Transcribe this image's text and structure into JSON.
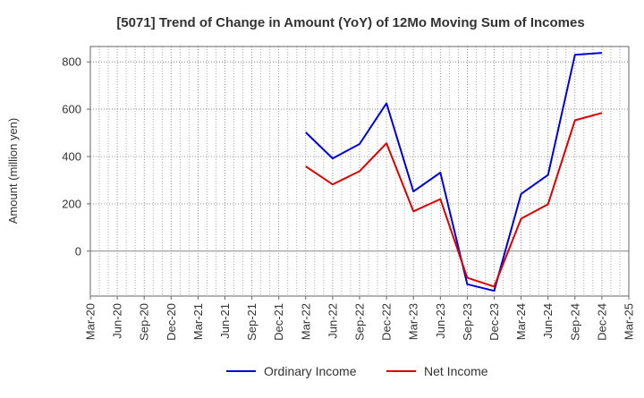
{
  "chart_data": {
    "type": "line",
    "title": "[5071]  Trend of Change in Amount (YoY) of 12Mo Moving Sum of Incomes",
    "xlabel": "",
    "ylabel": "Amount (million yen)",
    "categories": [
      "Mar-20",
      "Jun-20",
      "Sep-20",
      "Dec-20",
      "Mar-21",
      "Jun-21",
      "Sep-21",
      "Dec-21",
      "Mar-22",
      "Jun-22",
      "Sep-22",
      "Dec-22",
      "Mar-23",
      "Jun-23",
      "Sep-23",
      "Dec-23",
      "Mar-24",
      "Jun-24",
      "Sep-24",
      "Dec-24",
      "Mar-25"
    ],
    "ylim": [
      -190,
      865
    ],
    "yticks": [
      0,
      200,
      400,
      600,
      800
    ],
    "grid": true,
    "legend_position": "bottom",
    "series": [
      {
        "name": "Ordinary Income",
        "color": "#0000dd",
        "values": [
          null,
          null,
          null,
          null,
          null,
          null,
          null,
          null,
          502,
          392,
          453,
          625,
          252,
          332,
          -140,
          -168,
          242,
          322,
          830,
          838,
          null
        ]
      },
      {
        "name": "Net Income",
        "color": "#dd0000",
        "values": [
          null,
          null,
          null,
          null,
          null,
          null,
          null,
          null,
          358,
          282,
          338,
          456,
          168,
          220,
          -113,
          -150,
          137,
          198,
          553,
          584,
          null
        ]
      }
    ]
  }
}
